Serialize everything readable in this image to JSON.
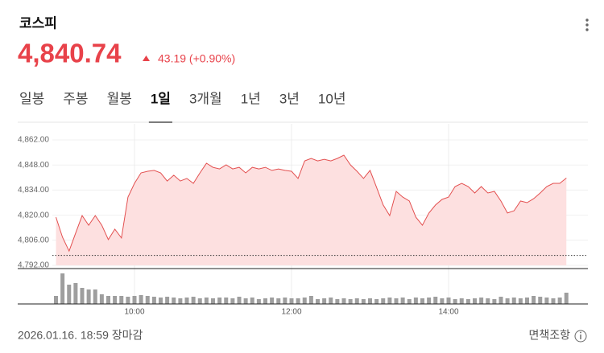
{
  "header": {
    "title": "코스피",
    "price": "4,840.74",
    "change": "43.19 (+0.90%)",
    "color": "#e8424a"
  },
  "tabs": {
    "items": [
      "일봉",
      "주봉",
      "월봉",
      "1일",
      "3개월",
      "1년",
      "3년",
      "10년"
    ],
    "active": 3
  },
  "chart_data": {
    "type": "area",
    "x": [
      "09:00",
      "09:05",
      "09:10",
      "09:15",
      "09:20",
      "09:25",
      "09:30",
      "09:35",
      "09:40",
      "09:45",
      "09:50",
      "09:55",
      "10:00",
      "10:05",
      "10:10",
      "10:15",
      "10:20",
      "10:25",
      "10:30",
      "10:35",
      "10:40",
      "10:45",
      "10:50",
      "10:55",
      "11:00",
      "11:05",
      "11:10",
      "11:15",
      "11:20",
      "11:25",
      "11:30",
      "11:35",
      "11:40",
      "11:45",
      "11:50",
      "11:55",
      "12:00",
      "12:05",
      "12:10",
      "12:15",
      "12:20",
      "12:25",
      "12:30",
      "12:35",
      "12:40",
      "12:45",
      "12:50",
      "12:55",
      "13:00",
      "13:05",
      "13:10",
      "13:15",
      "13:20",
      "13:25",
      "13:30",
      "13:35",
      "13:40",
      "13:45",
      "13:50",
      "13:55",
      "14:00",
      "14:05",
      "14:10",
      "14:15",
      "14:20",
      "14:25",
      "14:30",
      "14:35",
      "14:40",
      "14:45",
      "14:50",
      "14:55",
      "15:00",
      "15:05",
      "15:10",
      "15:15",
      "15:20",
      "15:25",
      "15:30"
    ],
    "values": [
      4818.9,
      4807.7,
      4800,
      4810,
      4819.8,
      4814.4,
      4819.8,
      4814.4,
      4806.4,
      4812.2,
      4807.3,
      4830.1,
      4837.8,
      4843.6,
      4844.5,
      4845,
      4843.6,
      4839.1,
      4842.3,
      4839.1,
      4840.5,
      4837.8,
      4843.6,
      4849,
      4846.7,
      4845.8,
      4848.1,
      4845.8,
      4846.7,
      4843.6,
      4846.7,
      4845.8,
      4846.7,
      4845,
      4845.8,
      4845,
      4844.5,
      4840.5,
      4850.3,
      4851.7,
      4850.3,
      4851.2,
      4850.3,
      4851.7,
      4853.5,
      4848.1,
      4844.5,
      4840.5,
      4845,
      4835.5,
      4825.7,
      4819.8,
      4833.3,
      4830.1,
      4827.9,
      4818.9,
      4814.4,
      4821.2,
      4825.7,
      4828.8,
      4830.1,
      4836,
      4837.8,
      4836,
      4832.4,
      4836,
      4832.4,
      4833.3,
      4827.9,
      4821.2,
      4822.5,
      4827.9,
      4827,
      4829.2,
      4832.4,
      4836,
      4837.8,
      4837.8,
      4840.74
    ],
    "color": "#e35050",
    "fill": "#fde0e0",
    "reference": 4797.55,
    "volume": [
      10,
      38,
      24,
      26,
      20,
      18,
      18,
      12,
      10,
      10,
      10,
      9,
      10,
      11,
      10,
      9,
      8,
      9,
      8,
      7,
      8,
      9,
      7,
      8,
      7,
      8,
      8,
      7,
      9,
      7,
      8,
      6,
      7,
      8,
      7,
      8,
      7,
      7,
      8,
      10,
      6,
      7,
      8,
      6,
      7,
      6,
      7,
      6,
      7,
      6,
      7,
      8,
      7,
      8,
      6,
      8,
      7,
      8,
      9,
      7,
      8,
      6,
      7,
      6,
      7,
      8,
      7,
      6,
      9,
      7,
      8,
      7,
      8,
      10,
      9,
      8,
      7,
      8,
      14
    ],
    "volume_color": "#9e9e9e",
    "ylim": [
      4792,
      4871
    ],
    "yticks": [
      {
        "value": 4792,
        "label": "4,792.00"
      },
      {
        "value": 4806,
        "label": "4,806.00"
      },
      {
        "value": 4820,
        "label": "4,820.00"
      },
      {
        "value": 4834,
        "label": "4,834.00"
      },
      {
        "value": 4848,
        "label": "4,848.00"
      },
      {
        "value": 4862,
        "label": "4,862.00"
      }
    ],
    "xticks": [
      "10:00",
      "12:00",
      "14:00"
    ],
    "grid": true
  },
  "footer": {
    "timestamp": "2026.01.16. 18:59 장마감",
    "disclaimer": "면책조항"
  }
}
